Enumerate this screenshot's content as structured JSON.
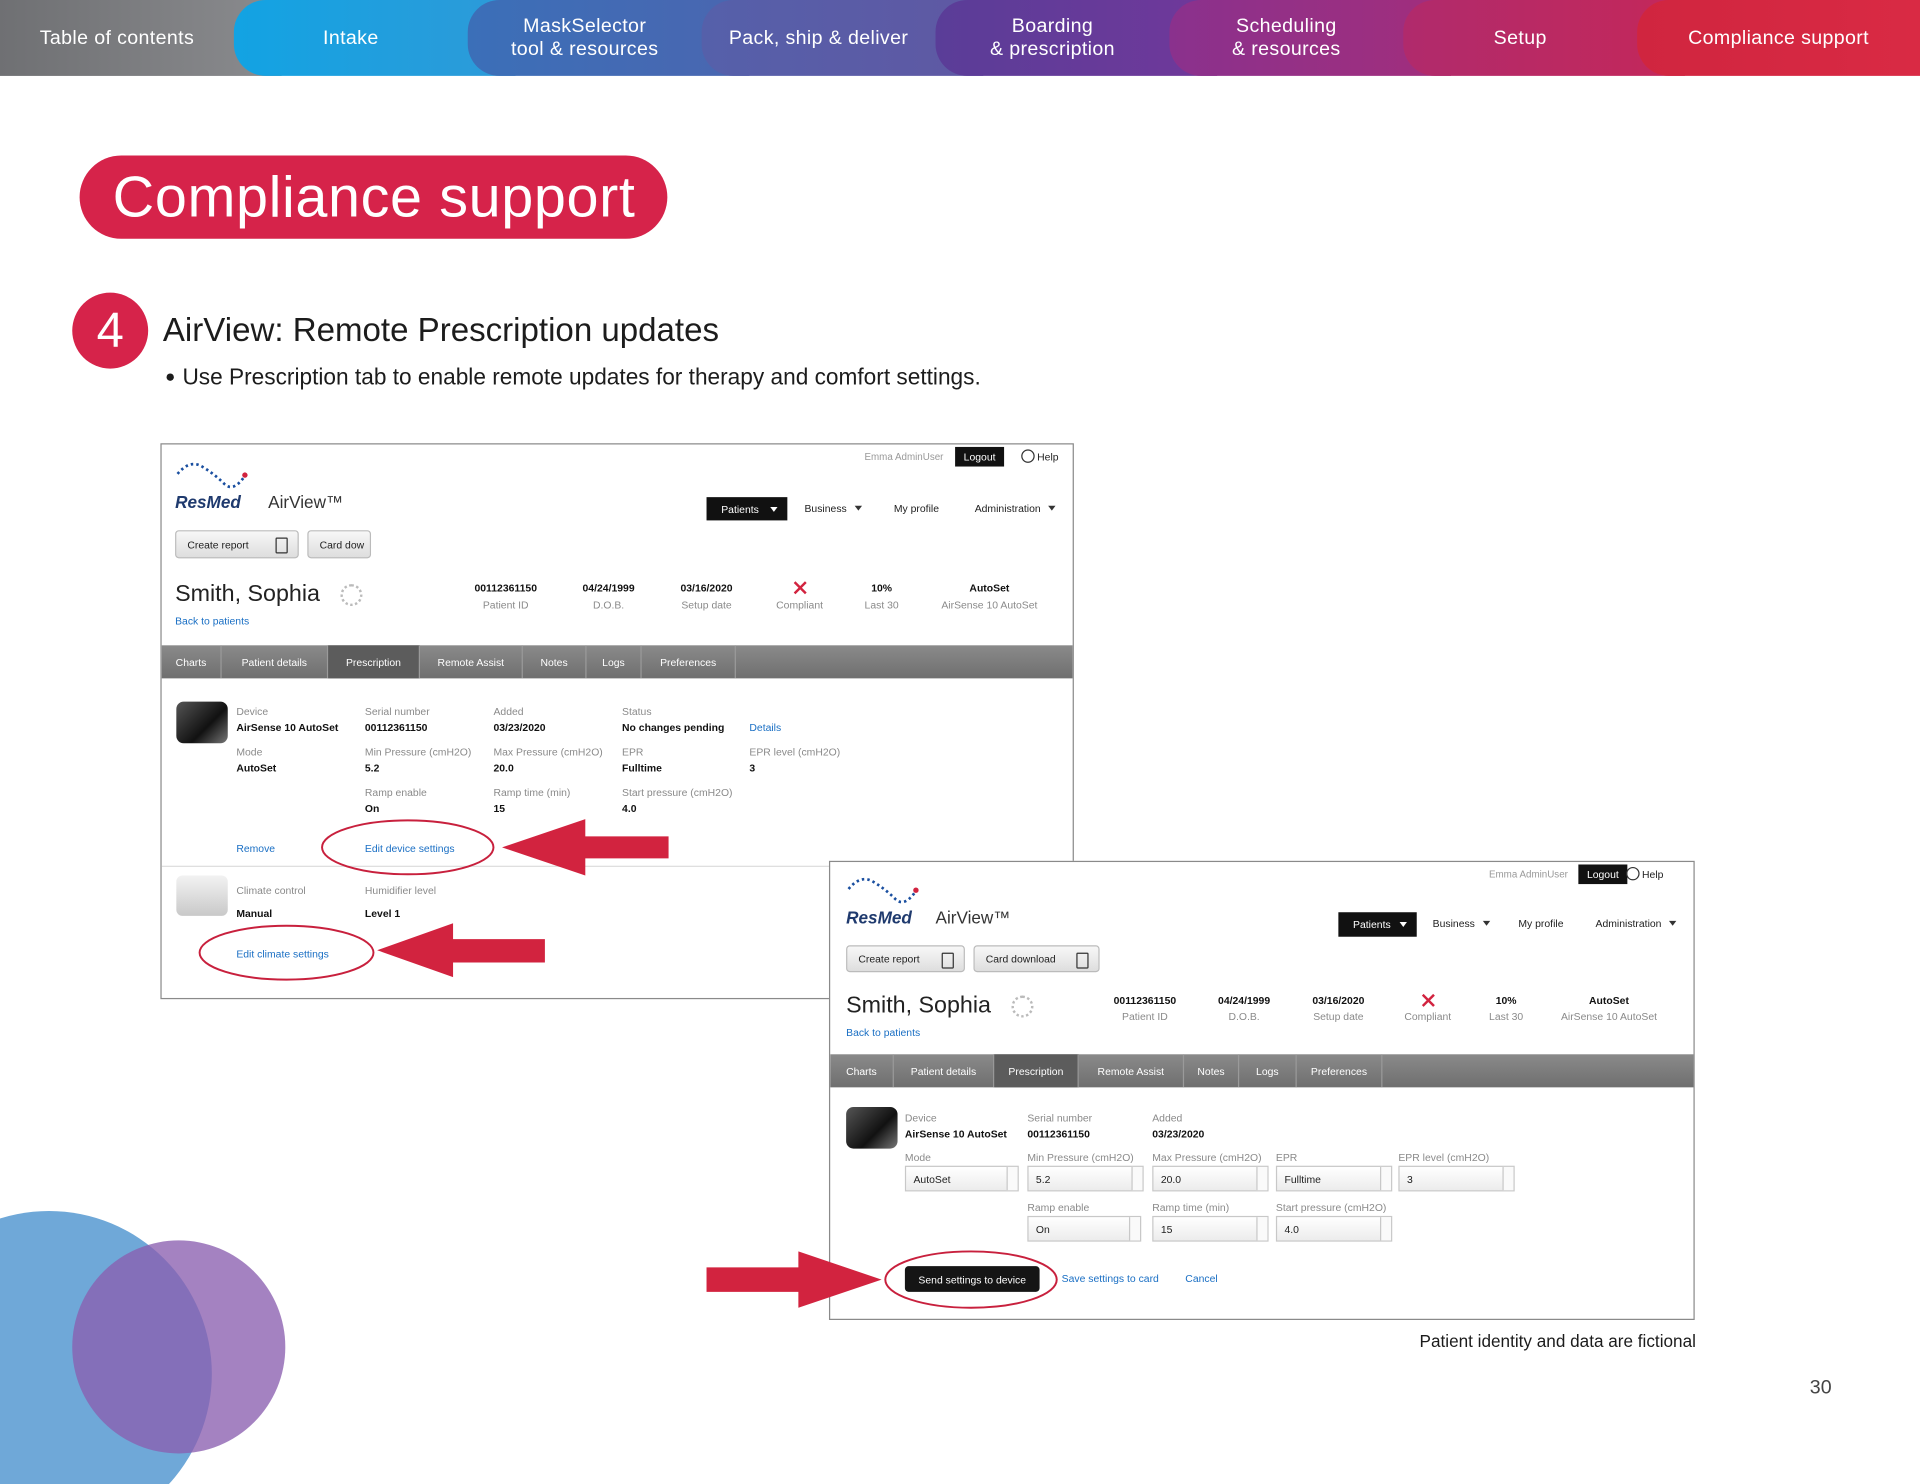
{
  "nav_tabs": [
    "Table of contents",
    "Intake",
    "MaskSelector\ntool & resources",
    "Pack, ship & deliver",
    "Boarding\n& prescription",
    "Scheduling\n& resources",
    "Setup",
    "Compliance support"
  ],
  "header": {
    "title": "Compliance support"
  },
  "step": {
    "number": "4",
    "heading": "AirView: Remote Prescription updates",
    "bullet": "Use Prescription tab to enable remote updates for therapy and comfort settings."
  },
  "screenshots": [
    {
      "user": "Emma AdminUser",
      "logout": "Logout",
      "help": "Help",
      "brand": "ResMed",
      "product": "AirView™",
      "menu": [
        "Patients",
        "Business",
        "My profile",
        "Administration"
      ],
      "buttons": [
        "Create report",
        "Card dow"
      ],
      "patient": {
        "name": "Smith, Sophia",
        "back": "Back to patients"
      },
      "stats": [
        {
          "value": "00112361150",
          "label": "Patient ID"
        },
        {
          "value": "04/24/1999",
          "label": "D.O.B."
        },
        {
          "value": "03/16/2020",
          "label": "Setup date"
        },
        {
          "label": "Compliant"
        },
        {
          "value": "10%",
          "label": "Last 30"
        },
        {
          "value": "AutoSet",
          "label": "AirSense 10 AutoSet"
        }
      ],
      "tabs": [
        "Charts",
        "Patient details",
        "Prescription",
        "Remote Assist",
        "Notes",
        "Logs",
        "Preferences"
      ],
      "device": {
        "rows": [
          [
            {
              "label": "Device",
              "value": "AirSense 10 AutoSet"
            },
            {
              "label": "Serial number",
              "value": "00112361150"
            },
            {
              "label": "Added",
              "value": "03/23/2020"
            },
            {
              "label": "Status",
              "value": "No changes pending"
            }
          ],
          [
            {
              "label": "Mode",
              "value": "AutoSet"
            },
            {
              "label": "Min Pressure (cmH2O)",
              "value": "5.2"
            },
            {
              "label": "Max Pressure (cmH2O)",
              "value": "20.0"
            },
            {
              "label": "EPR",
              "value": "Fulltime"
            },
            {
              "label": "EPR level (cmH2O)",
              "value": "3"
            }
          ],
          [
            {
              "label": "Ramp enable",
              "value": "On"
            },
            {
              "label": "Ramp time (min)",
              "value": "15"
            },
            {
              "label": "Start pressure (cmH2O)",
              "value": "4.0"
            }
          ]
        ],
        "details_link": "Details",
        "links": [
          "Remove",
          "Edit device settings"
        ]
      },
      "climate": {
        "fields": [
          {
            "label": "Climate control",
            "value": "Manual"
          },
          {
            "label": "Humidifier level",
            "value": "Level 1"
          }
        ],
        "link": "Edit climate settings"
      }
    },
    {
      "user": "Emma AdminUser",
      "logout": "Logout",
      "help": "Help",
      "brand": "ResMed",
      "product": "AirView™",
      "menu": [
        "Patients",
        "Business",
        "My profile",
        "Administration"
      ],
      "buttons": [
        "Create report",
        "Card download"
      ],
      "patient": {
        "name": "Smith, Sophia",
        "back": "Back to patients"
      },
      "stats": [
        {
          "value": "00112361150",
          "label": "Patient ID"
        },
        {
          "value": "04/24/1999",
          "label": "D.O.B."
        },
        {
          "value": "03/16/2020",
          "label": "Setup date"
        },
        {
          "label": "Compliant"
        },
        {
          "value": "10%",
          "label": "Last 30"
        },
        {
          "value": "AutoSet",
          "label": "AirSense 10 AutoSet"
        }
      ],
      "tabs": [
        "Charts",
        "Patient details",
        "Prescription",
        "Remote Assist",
        "Notes",
        "Logs",
        "Preferences"
      ],
      "device": {
        "rows": [
          [
            {
              "label": "Device",
              "value": "AirSense 10 AutoSet"
            },
            {
              "label": "Serial number",
              "value": "00112361150"
            },
            {
              "label": "Added",
              "value": "03/23/2020"
            }
          ],
          [
            {
              "label": "Mode",
              "value": "AutoSet"
            },
            {
              "label": "Min Pressure (cmH2O)",
              "value": "5.2"
            },
            {
              "label": "Max Pressure (cmH2O)",
              "value": "20.0"
            },
            {
              "label": "EPR",
              "value": "Fulltime"
            },
            {
              "label": "EPR level (cmH2O)",
              "value": "3"
            }
          ],
          [
            {
              "label": "Ramp enable",
              "value": "On"
            },
            {
              "label": "Ramp time (min)",
              "value": "15"
            },
            {
              "label": "Start pressure (cmH2O)",
              "value": "4.0"
            }
          ]
        ],
        "actions": [
          "Send settings to device",
          "Save settings to card",
          "Cancel"
        ]
      }
    }
  ],
  "footnote": "Patient identity and data are fictional",
  "page_number": "30"
}
